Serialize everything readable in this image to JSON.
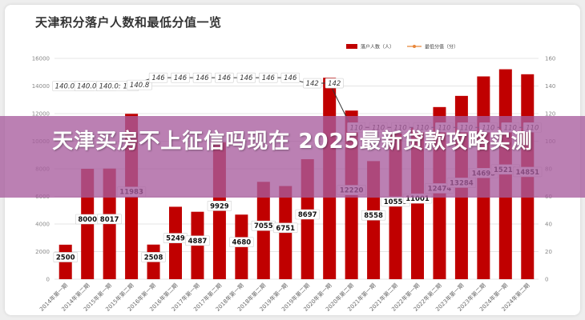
{
  "chart_data": {
    "type": "bar",
    "title": "天津积分落户人数和最低分值一览",
    "categories": [
      "2014年第一期",
      "2014年第二期",
      "2015年第一期",
      "2015年第二期",
      "2016年第一期",
      "2016年第二期",
      "2017年第一期",
      "2017年第二期",
      "2018年第一期",
      "2018年第二期",
      "2019年第一期",
      "2019年第二期",
      "2020年第一期",
      "2020年第二期",
      "2021年第一期",
      "2021年第二期",
      "2022年第一期",
      "2022年第二期",
      "2023年第一期",
      "2023年第二期",
      "2024年第一期",
      "2024年第二期"
    ],
    "series": [
      {
        "name": "落户人数（人）",
        "type": "bar",
        "axis": "left",
        "color": "#c00000",
        "values": [
          2500,
          8000,
          8017,
          11983,
          2508,
          5249,
          4887,
          9929,
          4680,
          7055,
          6751,
          8697,
          14600,
          12220,
          8558,
          10559,
          11001,
          12474,
          13284,
          14695,
          15213,
          14851
        ],
        "labels": [
          "2500",
          "8000",
          "8017",
          "11983",
          "2508",
          "5249",
          "4887",
          "9929",
          "4680",
          "7055",
          "6751",
          "8697",
          "",
          "12220",
          "8558",
          "10559",
          "11001",
          "12474",
          "13284",
          "14695",
          "15213",
          "14851"
        ]
      },
      {
        "name": "最低分值（分）",
        "type": "line",
        "axis": "right",
        "color": "#e8863a",
        "values": [
          140,
          140,
          140,
          140.8,
          146,
          146,
          146,
          146,
          146,
          146,
          146,
          142,
          142,
          110,
          110,
          110,
          110,
          110,
          110,
          110,
          110,
          110
        ],
        "labels": [
          "140.0: 140",
          "140.0: 140",
          "140.0: 140",
          "140.8",
          "146",
          "146",
          "146",
          "146",
          "146",
          "146",
          "146",
          "142",
          "142",
          "110",
          "110",
          "110",
          "110",
          "110",
          "110",
          "110",
          "110",
          "110"
        ]
      }
    ],
    "y_left": {
      "min": 0,
      "max": 16000,
      "ticks": [
        0,
        2000,
        4000,
        6000,
        8000,
        10000,
        12000,
        14000,
        16000
      ]
    },
    "y_right": {
      "min": 0,
      "max": 160,
      "ticks": [
        0,
        20,
        40,
        60,
        80,
        100,
        120,
        140,
        160
      ]
    },
    "grid": true,
    "legend_position": "top-right"
  },
  "overlay": {
    "text": "天津买房不上征信吗现在 2025最新贷款攻略实测",
    "color": "#a85c9e"
  }
}
